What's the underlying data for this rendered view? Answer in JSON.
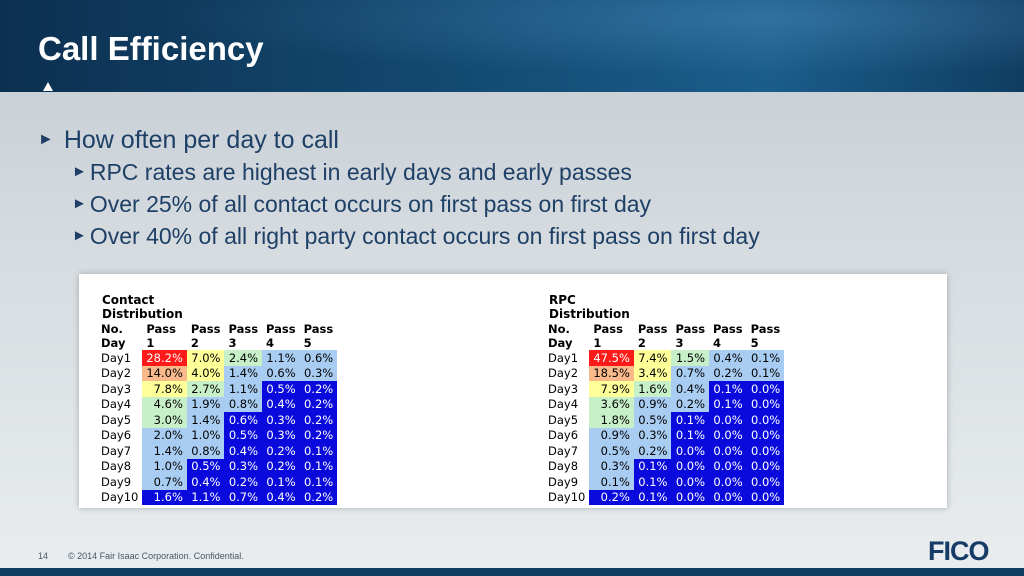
{
  "slide": {
    "title": "Call Efficiency",
    "bullet_main": "How often per day to call",
    "sub_bullets": [
      "RPC rates are highest in early days and early passes",
      "Over 25% of all contact occurs on first pass on first day",
      "Over 40% of all right party contact occurs on first pass on first day"
    ],
    "bullet_glyph": "►"
  },
  "colors": {
    "red": "#ff1a1a",
    "orange": "#f9b98a",
    "yellow": "#ffff99",
    "light_green": "#c8f0c8",
    "light_blue": "#a9cdf2",
    "blue": "#0a0adc"
  },
  "tables": [
    {
      "title": "Contact Distribution",
      "headers": [
        "No. Day",
        "Pass 1",
        "Pass 2",
        "Pass 3",
        "Pass 4",
        "Pass 5"
      ],
      "rows": [
        {
          "day": "Day1",
          "cells": [
            {
              "v": "28.2%",
              "c": "red"
            },
            {
              "v": "7.0%",
              "c": "yellow"
            },
            {
              "v": "2.4%",
              "c": "light_green"
            },
            {
              "v": "1.1%",
              "c": "light_blue"
            },
            {
              "v": "0.6%",
              "c": "light_blue"
            }
          ]
        },
        {
          "day": "Day2",
          "cells": [
            {
              "v": "14.0%",
              "c": "orange"
            },
            {
              "v": "4.0%",
              "c": "yellow"
            },
            {
              "v": "1.4%",
              "c": "light_blue"
            },
            {
              "v": "0.6%",
              "c": "light_blue"
            },
            {
              "v": "0.3%",
              "c": "light_blue"
            }
          ]
        },
        {
          "day": "Day3",
          "cells": [
            {
              "v": "7.8%",
              "c": "yellow"
            },
            {
              "v": "2.7%",
              "c": "light_green"
            },
            {
              "v": "1.1%",
              "c": "light_blue"
            },
            {
              "v": "0.5%",
              "c": "blue"
            },
            {
              "v": "0.2%",
              "c": "blue"
            }
          ]
        },
        {
          "day": "Day4",
          "cells": [
            {
              "v": "4.6%",
              "c": "light_green"
            },
            {
              "v": "1.9%",
              "c": "light_blue"
            },
            {
              "v": "0.8%",
              "c": "light_blue"
            },
            {
              "v": "0.4%",
              "c": "blue"
            },
            {
              "v": "0.2%",
              "c": "blue"
            }
          ]
        },
        {
          "day": "Day5",
          "cells": [
            {
              "v": "3.0%",
              "c": "light_green"
            },
            {
              "v": "1.4%",
              "c": "light_blue"
            },
            {
              "v": "0.6%",
              "c": "blue"
            },
            {
              "v": "0.3%",
              "c": "blue"
            },
            {
              "v": "0.2%",
              "c": "blue"
            }
          ]
        },
        {
          "day": "Day6",
          "cells": [
            {
              "v": "2.0%",
              "c": "light_blue"
            },
            {
              "v": "1.0%",
              "c": "light_blue"
            },
            {
              "v": "0.5%",
              "c": "blue"
            },
            {
              "v": "0.3%",
              "c": "blue"
            },
            {
              "v": "0.2%",
              "c": "blue"
            }
          ]
        },
        {
          "day": "Day7",
          "cells": [
            {
              "v": "1.4%",
              "c": "light_blue"
            },
            {
              "v": "0.8%",
              "c": "light_blue"
            },
            {
              "v": "0.4%",
              "c": "blue"
            },
            {
              "v": "0.2%",
              "c": "blue"
            },
            {
              "v": "0.1%",
              "c": "blue"
            }
          ]
        },
        {
          "day": "Day8",
          "cells": [
            {
              "v": "1.0%",
              "c": "light_blue"
            },
            {
              "v": "0.5%",
              "c": "blue"
            },
            {
              "v": "0.3%",
              "c": "blue"
            },
            {
              "v": "0.2%",
              "c": "blue"
            },
            {
              "v": "0.1%",
              "c": "blue"
            }
          ]
        },
        {
          "day": "Day9",
          "cells": [
            {
              "v": "0.7%",
              "c": "light_blue"
            },
            {
              "v": "0.4%",
              "c": "blue"
            },
            {
              "v": "0.2%",
              "c": "blue"
            },
            {
              "v": "0.1%",
              "c": "blue"
            },
            {
              "v": "0.1%",
              "c": "blue"
            }
          ]
        },
        {
          "day": "Day10",
          "cells": [
            {
              "v": "1.6%",
              "c": "blue"
            },
            {
              "v": "1.1%",
              "c": "blue"
            },
            {
              "v": "0.7%",
              "c": "blue"
            },
            {
              "v": "0.4%",
              "c": "blue"
            },
            {
              "v": "0.2%",
              "c": "blue"
            }
          ]
        }
      ]
    },
    {
      "title": "RPC Distribution",
      "headers": [
        "No. Day",
        "Pass 1",
        "Pass 2",
        "Pass 3",
        "Pass 4",
        "Pass 5"
      ],
      "rows": [
        {
          "day": "Day1",
          "cells": [
            {
              "v": "47.5%",
              "c": "red"
            },
            {
              "v": "7.4%",
              "c": "yellow"
            },
            {
              "v": "1.5%",
              "c": "light_green"
            },
            {
              "v": "0.4%",
              "c": "light_blue"
            },
            {
              "v": "0.1%",
              "c": "light_blue"
            }
          ]
        },
        {
          "day": "Day2",
          "cells": [
            {
              "v": "18.5%",
              "c": "orange"
            },
            {
              "v": "3.4%",
              "c": "yellow"
            },
            {
              "v": "0.7%",
              "c": "light_blue"
            },
            {
              "v": "0.2%",
              "c": "light_blue"
            },
            {
              "v": "0.1%",
              "c": "light_blue"
            }
          ]
        },
        {
          "day": "Day3",
          "cells": [
            {
              "v": "7.9%",
              "c": "yellow"
            },
            {
              "v": "1.6%",
              "c": "light_green"
            },
            {
              "v": "0.4%",
              "c": "light_blue"
            },
            {
              "v": "0.1%",
              "c": "blue"
            },
            {
              "v": "0.0%",
              "c": "blue"
            }
          ]
        },
        {
          "day": "Day4",
          "cells": [
            {
              "v": "3.6%",
              "c": "light_green"
            },
            {
              "v": "0.9%",
              "c": "light_blue"
            },
            {
              "v": "0.2%",
              "c": "light_blue"
            },
            {
              "v": "0.1%",
              "c": "blue"
            },
            {
              "v": "0.0%",
              "c": "blue"
            }
          ]
        },
        {
          "day": "Day5",
          "cells": [
            {
              "v": "1.8%",
              "c": "light_green"
            },
            {
              "v": "0.5%",
              "c": "light_blue"
            },
            {
              "v": "0.1%",
              "c": "blue"
            },
            {
              "v": "0.0%",
              "c": "blue"
            },
            {
              "v": "0.0%",
              "c": "blue"
            }
          ]
        },
        {
          "day": "Day6",
          "cells": [
            {
              "v": "0.9%",
              "c": "light_blue"
            },
            {
              "v": "0.3%",
              "c": "light_blue"
            },
            {
              "v": "0.1%",
              "c": "blue"
            },
            {
              "v": "0.0%",
              "c": "blue"
            },
            {
              "v": "0.0%",
              "c": "blue"
            }
          ]
        },
        {
          "day": "Day7",
          "cells": [
            {
              "v": "0.5%",
              "c": "light_blue"
            },
            {
              "v": "0.2%",
              "c": "light_blue"
            },
            {
              "v": "0.0%",
              "c": "blue"
            },
            {
              "v": "0.0%",
              "c": "blue"
            },
            {
              "v": "0.0%",
              "c": "blue"
            }
          ]
        },
        {
          "day": "Day8",
          "cells": [
            {
              "v": "0.3%",
              "c": "light_blue"
            },
            {
              "v": "0.1%",
              "c": "blue"
            },
            {
              "v": "0.0%",
              "c": "blue"
            },
            {
              "v": "0.0%",
              "c": "blue"
            },
            {
              "v": "0.0%",
              "c": "blue"
            }
          ]
        },
        {
          "day": "Day9",
          "cells": [
            {
              "v": "0.1%",
              "c": "light_blue"
            },
            {
              "v": "0.1%",
              "c": "blue"
            },
            {
              "v": "0.0%",
              "c": "blue"
            },
            {
              "v": "0.0%",
              "c": "blue"
            },
            {
              "v": "0.0%",
              "c": "blue"
            }
          ]
        },
        {
          "day": "Day10",
          "cells": [
            {
              "v": "0.2%",
              "c": "blue"
            },
            {
              "v": "0.1%",
              "c": "blue"
            },
            {
              "v": "0.0%",
              "c": "blue"
            },
            {
              "v": "0.0%",
              "c": "blue"
            },
            {
              "v": "0.0%",
              "c": "blue"
            }
          ]
        }
      ]
    }
  ],
  "footer": {
    "page_number": "14",
    "copyright": "© 2014 Fair Isaac Corporation. Confidential.",
    "logo": "FICO"
  }
}
